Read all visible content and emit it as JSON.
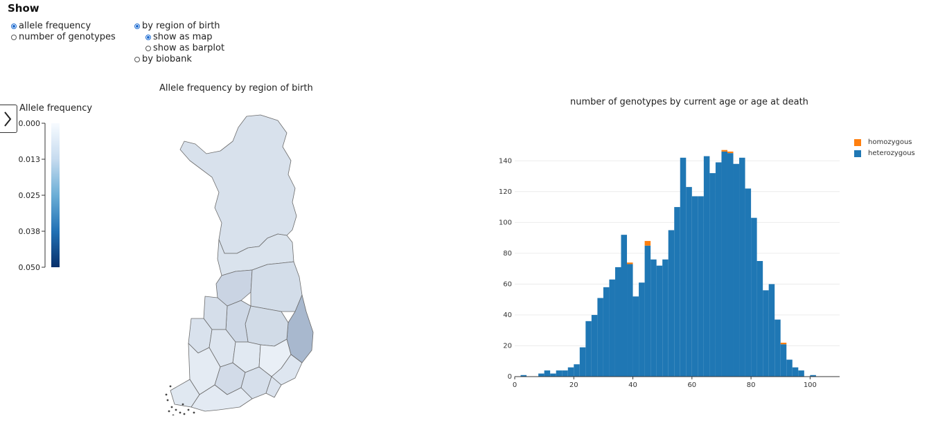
{
  "controls": {
    "title": "Show",
    "options": {
      "allele_frequency": "allele frequency",
      "number_of_genotypes": "number of genotypes",
      "by_region": "by region of birth",
      "show_as_map": "show as map",
      "show_as_barplot": "show as barplot",
      "by_biobank": "by biobank"
    },
    "selected": {
      "measure": "allele frequency",
      "grouping": "by region of birth",
      "display": "show as map"
    }
  },
  "map_panel": {
    "title": "Allele frequency by region of birth",
    "legend_title": "Allele frequency",
    "legend_ticks": [
      "0.000",
      "0.013",
      "0.025",
      "0.038",
      "0.050"
    ],
    "scale_colors": {
      "low": "#f7fbff",
      "high": "#08306b"
    },
    "region_frequencies": [
      0.0065,
      0.006,
      0.0095,
      0.0075,
      0.0165,
      0.008,
      0.0085,
      0.0072,
      0.0062,
      0.0055,
      0.0045,
      0.003,
      0.0052,
      0.004,
      0.0078,
      0.0068,
      0.0058,
      0.0048,
      0.0042
    ]
  },
  "histogram": {
    "title": "number of genotypes by current age or age at death",
    "legend": [
      {
        "label": "homozygous",
        "color": "#ff7f0e"
      },
      {
        "label": "heterozygous",
        "color": "#1f77b4"
      }
    ],
    "expand_icon": "chevron-right-icon"
  },
  "chart_data": {
    "type": "bar",
    "title": "number of genotypes by current age or age at death",
    "xlabel": "",
    "ylabel": "",
    "xlim": [
      0,
      110
    ],
    "ylim": [
      0,
      150
    ],
    "x_ticks": [
      0,
      20,
      40,
      60,
      80,
      100
    ],
    "y_ticks": [
      0,
      20,
      40,
      60,
      80,
      100,
      120,
      140
    ],
    "grid": "horizontal",
    "legend_position": "top-right",
    "stacked": true,
    "bin_width": 2,
    "bin_starts": [
      2,
      4,
      6,
      8,
      10,
      12,
      14,
      16,
      18,
      20,
      22,
      24,
      26,
      28,
      30,
      32,
      34,
      36,
      38,
      40,
      42,
      44,
      46,
      48,
      50,
      52,
      54,
      56,
      58,
      60,
      62,
      64,
      66,
      68,
      70,
      72,
      74,
      76,
      78,
      80,
      82,
      84,
      86,
      88,
      90,
      92,
      94,
      96,
      98,
      100,
      102,
      104
    ],
    "series": [
      {
        "name": "heterozygous",
        "values": [
          1,
          0,
          0,
          2,
          4,
          2,
          4,
          4,
          6,
          8,
          19,
          36,
          40,
          51,
          58,
          63,
          71,
          92,
          73,
          52,
          61,
          85,
          76,
          72,
          76,
          95,
          110,
          142,
          123,
          117,
          117,
          143,
          132,
          139,
          146,
          145,
          138,
          142,
          122,
          103,
          75,
          56,
          60,
          37,
          21,
          11,
          6,
          4,
          0,
          1,
          0,
          0
        ]
      },
      {
        "name": "homozygous",
        "values": [
          0,
          0,
          0,
          0,
          0,
          0,
          0,
          0,
          0,
          0,
          0,
          0,
          0,
          0,
          0,
          0,
          0,
          0,
          1,
          0,
          0,
          3,
          0,
          0,
          0,
          0,
          0,
          0,
          0,
          0,
          0,
          0,
          0,
          0,
          1,
          1,
          0,
          0,
          0,
          0,
          0,
          0,
          0,
          0,
          1,
          0,
          0,
          0,
          0,
          0,
          0,
          0
        ]
      }
    ]
  }
}
